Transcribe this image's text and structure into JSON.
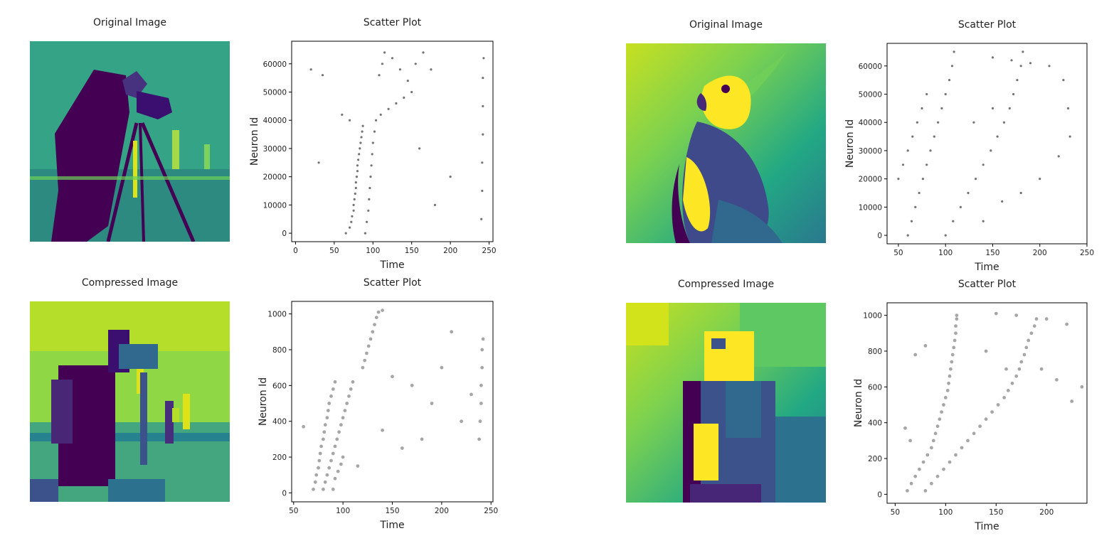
{
  "figure": {
    "titles": {
      "orig_left": "Original Image",
      "scatter_tl": "Scatter Plot",
      "comp_left": "Compressed Image",
      "scatter_bl": "Scatter Plot",
      "orig_right": "Original Image",
      "scatter_tr": "Scatter Plot",
      "comp_right": "Compressed Image",
      "scatter_br": "Scatter Plot"
    },
    "colors": {
      "viridis_dark": "#440154",
      "viridis_mid": "#3b528b",
      "viridis_teal": "#21918c",
      "viridis_green": "#5ec962",
      "viridis_yellow": "#fde725",
      "marker": "#000000"
    }
  },
  "chart_data": [
    {
      "id": "scatter_tl",
      "type": "scatter",
      "title": "Scatter Plot",
      "xlabel": "Time",
      "ylabel": "Neuron Id",
      "xlim": [
        -5,
        255
      ],
      "ylim": [
        -3000,
        68000
      ],
      "xticks": [
        0,
        50,
        100,
        150,
        200,
        250
      ],
      "yticks": [
        0,
        10000,
        20000,
        30000,
        40000,
        50000,
        60000
      ],
      "series": [
        {
          "points": [
            [
              65,
              0
            ],
            [
              70,
              2000
            ],
            [
              72,
              4000
            ],
            [
              73,
              6000
            ],
            [
              75,
              8000
            ],
            [
              75,
              10000
            ],
            [
              76,
              12000
            ],
            [
              77,
              14000
            ],
            [
              78,
              16000
            ],
            [
              78,
              18000
            ],
            [
              79,
              20000
            ],
            [
              80,
              22000
            ],
            [
              80,
              24000
            ],
            [
              81,
              26000
            ],
            [
              82,
              28000
            ],
            [
              83,
              30000
            ],
            [
              84,
              32000
            ],
            [
              85,
              34000
            ],
            [
              86,
              36000
            ],
            [
              87,
              38000
            ],
            [
              90,
              0
            ],
            [
              92,
              4000
            ],
            [
              94,
              8000
            ],
            [
              95,
              12000
            ],
            [
              96,
              16000
            ],
            [
              97,
              20000
            ],
            [
              98,
              24000
            ],
            [
              99,
              28000
            ],
            [
              100,
              32000
            ],
            [
              102,
              36000
            ],
            [
              104,
              40000
            ],
            [
              110,
              42000
            ],
            [
              120,
              44000
            ],
            [
              130,
              46000
            ],
            [
              140,
              48000
            ],
            [
              150,
              50000
            ],
            [
              108,
              56000
            ],
            [
              112,
              60000
            ],
            [
              115,
              64000
            ],
            [
              125,
              62000
            ],
            [
              135,
              58000
            ],
            [
              145,
              54000
            ],
            [
              155,
              60000
            ],
            [
              165,
              64000
            ],
            [
              175,
              58000
            ],
            [
              240,
              5000
            ],
            [
              241,
              15000
            ],
            [
              241,
              25000
            ],
            [
              242,
              35000
            ],
            [
              242,
              45000
            ],
            [
              242,
              55000
            ],
            [
              243,
              62000
            ],
            [
              20,
              58000
            ],
            [
              35,
              56000
            ],
            [
              60,
              42000
            ],
            [
              70,
              40000
            ],
            [
              160,
              30000
            ],
            [
              200,
              20000
            ],
            [
              180,
              10000
            ],
            [
              30,
              25000
            ]
          ]
        }
      ]
    },
    {
      "id": "scatter_bl",
      "type": "scatter",
      "title": "Scatter Plot",
      "xlabel": "Time",
      "ylabel": "Neuron Id",
      "xlim": [
        48,
        252
      ],
      "ylim": [
        -50,
        1070
      ],
      "xticks": [
        50,
        100,
        150,
        200,
        250
      ],
      "yticks": [
        0,
        200,
        400,
        600,
        800,
        1000
      ],
      "series": [
        {
          "points": [
            [
              70,
              20
            ],
            [
              72,
              60
            ],
            [
              73,
              100
            ],
            [
              75,
              140
            ],
            [
              76,
              180
            ],
            [
              77,
              220
            ],
            [
              78,
              260
            ],
            [
              80,
              300
            ],
            [
              81,
              340
            ],
            [
              82,
              380
            ],
            [
              84,
              420
            ],
            [
              85,
              460
            ],
            [
              86,
              500
            ],
            [
              88,
              540
            ],
            [
              90,
              580
            ],
            [
              92,
              620
            ],
            [
              80,
              20
            ],
            [
              82,
              60
            ],
            [
              84,
              100
            ],
            [
              86,
              140
            ],
            [
              88,
              180
            ],
            [
              90,
              220
            ],
            [
              92,
              260
            ],
            [
              94,
              300
            ],
            [
              96,
              340
            ],
            [
              98,
              380
            ],
            [
              100,
              420
            ],
            [
              102,
              460
            ],
            [
              104,
              500
            ],
            [
              106,
              540
            ],
            [
              108,
              580
            ],
            [
              110,
              620
            ],
            [
              90,
              20
            ],
            [
              92,
              80
            ],
            [
              95,
              120
            ],
            [
              98,
              160
            ],
            [
              100,
              200
            ],
            [
              120,
              700
            ],
            [
              122,
              740
            ],
            [
              124,
              780
            ],
            [
              126,
              820
            ],
            [
              128,
              860
            ],
            [
              130,
              900
            ],
            [
              132,
              940
            ],
            [
              134,
              980
            ],
            [
              136,
              1010
            ],
            [
              140,
              1020
            ],
            [
              238,
              300
            ],
            [
              239,
              400
            ],
            [
              240,
              500
            ],
            [
              240,
              600
            ],
            [
              241,
              700
            ],
            [
              241,
              800
            ],
            [
              242,
              860
            ],
            [
              150,
              650
            ],
            [
              170,
              600
            ],
            [
              190,
              500
            ],
            [
              200,
              700
            ],
            [
              210,
              900
            ],
            [
              220,
              400
            ],
            [
              230,
              550
            ],
            [
              180,
              300
            ],
            [
              160,
              250
            ],
            [
              140,
              350
            ],
            [
              115,
              150
            ],
            [
              60,
              370
            ]
          ]
        }
      ]
    },
    {
      "id": "scatter_tr",
      "type": "scatter",
      "title": "Scatter Plot",
      "xlabel": "Time",
      "ylabel": "Neuron Id",
      "xlim": [
        38,
        250
      ],
      "ylim": [
        -3000,
        68000
      ],
      "xticks": [
        50,
        100,
        150,
        200,
        250
      ],
      "yticks": [
        0,
        10000,
        20000,
        30000,
        40000,
        50000,
        60000
      ],
      "series": [
        {
          "points": [
            [
              60,
              0
            ],
            [
              64,
              5000
            ],
            [
              68,
              10000
            ],
            [
              72,
              15000
            ],
            [
              76,
              20000
            ],
            [
              80,
              25000
            ],
            [
              84,
              30000
            ],
            [
              88,
              35000
            ],
            [
              92,
              40000
            ],
            [
              96,
              45000
            ],
            [
              100,
              50000
            ],
            [
              104,
              55000
            ],
            [
              107,
              60000
            ],
            [
              109,
              65000
            ],
            [
              100,
              0
            ],
            [
              108,
              5000
            ],
            [
              116,
              10000
            ],
            [
              124,
              15000
            ],
            [
              132,
              20000
            ],
            [
              140,
              25000
            ],
            [
              148,
              30000
            ],
            [
              155,
              35000
            ],
            [
              162,
              40000
            ],
            [
              168,
              45000
            ],
            [
              172,
              50000
            ],
            [
              176,
              55000
            ],
            [
              180,
              60000
            ],
            [
              182,
              65000
            ],
            [
              50,
              20000
            ],
            [
              55,
              25000
            ],
            [
              60,
              30000
            ],
            [
              65,
              35000
            ],
            [
              70,
              40000
            ],
            [
              75,
              45000
            ],
            [
              80,
              50000
            ],
            [
              150,
              63000
            ],
            [
              170,
              62000
            ],
            [
              190,
              61000
            ],
            [
              210,
              60000
            ],
            [
              225,
              55000
            ],
            [
              230,
              45000
            ],
            [
              232,
              35000
            ],
            [
              220,
              28000
            ],
            [
              200,
              20000
            ],
            [
              180,
              15000
            ],
            [
              160,
              12000
            ],
            [
              140,
              5000
            ],
            [
              130,
              40000
            ],
            [
              150,
              45000
            ]
          ]
        }
      ]
    },
    {
      "id": "scatter_br",
      "type": "scatter",
      "title": "Scatter Plot",
      "xlabel": "Time",
      "ylabel": "Neuron Id",
      "xlim": [
        42,
        240
      ],
      "ylim": [
        -50,
        1070
      ],
      "xticks": [
        50,
        100,
        150,
        200
      ],
      "yticks": [
        0,
        200,
        400,
        600,
        800,
        1000
      ],
      "series": [
        {
          "points": [
            [
              62,
              20
            ],
            [
              66,
              60
            ],
            [
              70,
              100
            ],
            [
              74,
              140
            ],
            [
              78,
              180
            ],
            [
              82,
              220
            ],
            [
              86,
              260
            ],
            [
              88,
              300
            ],
            [
              90,
              340
            ],
            [
              92,
              380
            ],
            [
              94,
              420
            ],
            [
              96,
              460
            ],
            [
              98,
              500
            ],
            [
              100,
              540
            ],
            [
              102,
              580
            ],
            [
              103,
              620
            ],
            [
              104,
              660
            ],
            [
              105,
              700
            ],
            [
              106,
              740
            ],
            [
              107,
              780
            ],
            [
              108,
              820
            ],
            [
              109,
              860
            ],
            [
              110,
              900
            ],
            [
              110,
              940
            ],
            [
              111,
              980
            ],
            [
              111,
              1000
            ],
            [
              80,
              20
            ],
            [
              86,
              60
            ],
            [
              92,
              100
            ],
            [
              98,
              140
            ],
            [
              104,
              180
            ],
            [
              110,
              220
            ],
            [
              116,
              260
            ],
            [
              122,
              300
            ],
            [
              128,
              340
            ],
            [
              134,
              380
            ],
            [
              140,
              420
            ],
            [
              146,
              460
            ],
            [
              152,
              500
            ],
            [
              158,
              540
            ],
            [
              162,
              580
            ],
            [
              166,
              620
            ],
            [
              170,
              660
            ],
            [
              173,
              700
            ],
            [
              175,
              740
            ],
            [
              178,
              780
            ],
            [
              180,
              820
            ],
            [
              182,
              860
            ],
            [
              185,
              900
            ],
            [
              188,
              940
            ],
            [
              190,
              980
            ],
            [
              150,
              1010
            ],
            [
              170,
              1000
            ],
            [
              200,
              980
            ],
            [
              220,
              950
            ],
            [
              235,
              600
            ],
            [
              225,
              520
            ],
            [
              210,
              640
            ],
            [
              195,
              700
            ],
            [
              60,
              370
            ],
            [
              65,
              300
            ],
            [
              70,
              780
            ],
            [
              80,
              830
            ],
            [
              160,
              700
            ],
            [
              140,
              800
            ]
          ]
        }
      ]
    }
  ]
}
